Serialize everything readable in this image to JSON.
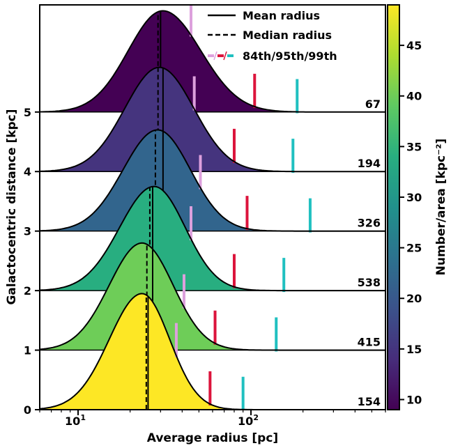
{
  "chart_data": {
    "type": "ridgeline",
    "xlabel": "Average radius [pc]",
    "ylabel": "Galactocentric distance [kpc]",
    "colorbar_label": "Number/area [kpc⁻²]",
    "x_scale": "log",
    "xlim": [
      6,
      600
    ],
    "ylim": [
      0,
      6.8
    ],
    "x_ticks": [
      {
        "value": 10,
        "base": "10",
        "exp": "1"
      },
      {
        "value": 100,
        "base": "10",
        "exp": "2"
      }
    ],
    "y_ticks": [
      "0",
      "1",
      "2",
      "3",
      "4",
      "5"
    ],
    "colorbar": {
      "range": [
        9,
        49
      ],
      "ticks": [
        "10",
        "15",
        "20",
        "25",
        "30",
        "35",
        "40",
        "45"
      ],
      "colors": [
        "#440154",
        "#472d7b",
        "#3b528b",
        "#2c728e",
        "#21918c",
        "#28ae80",
        "#5ec962",
        "#addc30",
        "#fde725"
      ]
    },
    "legend": {
      "position": "top-right",
      "entries": [
        {
          "label": "Mean radius",
          "style": "solid"
        },
        {
          "label": "Median radius",
          "style": "dashed"
        },
        {
          "label": "84th/95th/99th",
          "style": "percentile"
        }
      ]
    },
    "percentile_colors": [
      "#dda0dd",
      "#dc143c",
      "#20c0c0"
    ],
    "series": [
      {
        "baseline": 0,
        "count": "154",
        "density": 49,
        "peak": 1.95,
        "mu": 1.37,
        "sl": 0.19,
        "sr": 0.16,
        "mean": 25.4,
        "median": 24.8,
        "p84": 37,
        "p95": 58,
        "p99": 90
      },
      {
        "baseline": 1,
        "count": "415",
        "density": 40,
        "peak": 1.8,
        "mu": 1.37,
        "sl": 0.19,
        "sr": 0.18,
        "mean": 27,
        "median": 25,
        "p84": 41,
        "p95": 62,
        "p99": 140
      },
      {
        "baseline": 2,
        "count": "538",
        "density": 34,
        "peak": 1.75,
        "mu": 1.44,
        "sl": 0.2,
        "sr": 0.18,
        "mean": 27,
        "median": 26,
        "p84": 45,
        "p95": 80,
        "p99": 155
      },
      {
        "baseline": 3,
        "count": "326",
        "density": 22,
        "peak": 1.7,
        "mu": 1.46,
        "sl": 0.2,
        "sr": 0.19,
        "mean": 31,
        "median": 28,
        "p84": 51,
        "p95": 95,
        "p99": 220
      },
      {
        "baseline": 4,
        "count": "194",
        "density": 15,
        "peak": 1.75,
        "mu": 1.47,
        "sl": 0.2,
        "sr": 0.2,
        "mean": 31,
        "median": 29,
        "p84": 47,
        "p95": 80,
        "p99": 175
      },
      {
        "baseline": 5,
        "count": "67",
        "density": 9,
        "peak": 1.7,
        "mu": 1.49,
        "sl": 0.2,
        "sr": 0.22,
        "mean": 30,
        "median": 29,
        "p84": 45,
        "p95": 105,
        "p99": 185
      }
    ]
  }
}
